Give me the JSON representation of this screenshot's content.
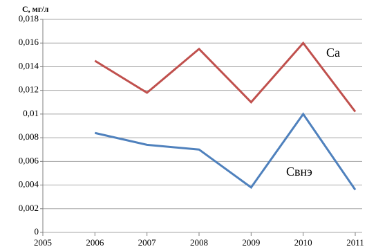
{
  "chart_data": {
    "type": "line",
    "y_label": "С, мг/л",
    "x": [
      2006,
      2007,
      2008,
      2009,
      2010,
      2011
    ],
    "series": [
      {
        "name": "Ca",
        "color": "#c0504d",
        "values": [
          0.0145,
          0.0118,
          0.0155,
          0.011,
          0.016,
          0.0102
        ]
      },
      {
        "name": "Свнэ",
        "color": "#4f81bd",
        "values": [
          0.0084,
          0.0074,
          0.007,
          0.0038,
          0.01,
          0.0036
        ]
      }
    ],
    "xlim": [
      2005,
      2011
    ],
    "xticks": [
      2005,
      2006,
      2007,
      2008,
      2009,
      2010,
      2011
    ],
    "ylim": [
      0,
      0.018
    ],
    "yticks": [
      0,
      {
        "value": 0.002,
        "label": "0,002"
      },
      {
        "value": 0.004,
        "label": "0,004"
      },
      {
        "value": 0.006,
        "label": "0,006"
      },
      {
        "value": 0.008,
        "label": "0,008"
      },
      {
        "value": 0.01,
        "label": "0,01"
      },
      {
        "value": 0.012,
        "label": "0,012"
      },
      {
        "value": 0.014,
        "label": "0,014"
      },
      {
        "value": 0.016,
        "label": "0,016"
      },
      {
        "value": 0.018,
        "label": "0,018"
      }
    ],
    "grid": true
  }
}
